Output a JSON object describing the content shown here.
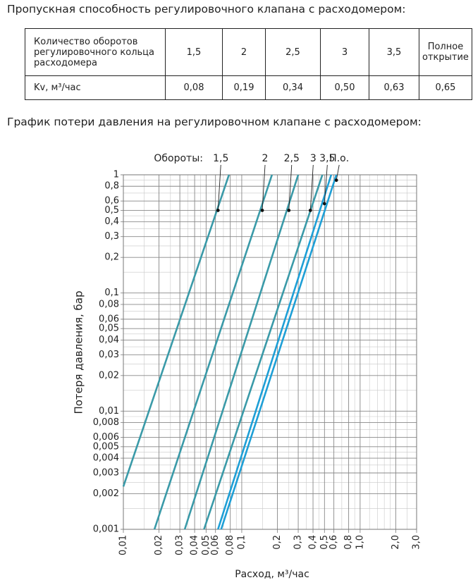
{
  "heading": "Пропускная способность регулировочного клапана с расходомером:",
  "table": {
    "header": [
      "Количество оборотов регулировочного кольца расходомера",
      "1,5",
      "2",
      "2,5",
      "3",
      "3,5",
      "Полное открытие"
    ],
    "rows": [
      [
        "Kv, м³/час",
        "0,08",
        "0,19",
        "0,34",
        "0,50",
        "0,63",
        "0,65"
      ]
    ]
  },
  "chart_heading": "График потери давления на регулировочном клапане с расходомером:",
  "chart_data": {
    "type": "line",
    "log_x": true,
    "log_y": true,
    "legend_title": "Обороты:",
    "x_label": "Расход, м³/час",
    "y_label": "Потеря давления, бар",
    "xlim": [
      0.01,
      3
    ],
    "ylim": [
      0.001,
      1
    ],
    "xticks": [
      {
        "value": 0.01,
        "label": "0,01"
      },
      {
        "value": 0.02,
        "label": "0,02"
      },
      {
        "value": 0.03,
        "label": "0,03"
      },
      {
        "value": 0.04,
        "label": "0,04"
      },
      {
        "value": 0.05,
        "label": "0,05"
      },
      {
        "value": 0.06,
        "label": "0,06"
      },
      {
        "value": 0.08,
        "label": "0,08"
      },
      {
        "value": 0.1,
        "label": "0,1"
      },
      {
        "value": 0.2,
        "label": "0,2"
      },
      {
        "value": 0.3,
        "label": "0,3"
      },
      {
        "value": 0.4,
        "label": "0,4"
      },
      {
        "value": 0.5,
        "label": "0,5"
      },
      {
        "value": 0.6,
        "label": "0,6"
      },
      {
        "value": 0.8,
        "label": "0,8"
      },
      {
        "value": 1,
        "label": "1,0"
      },
      {
        "value": 2,
        "label": "2,0"
      },
      {
        "value": 3,
        "label": "3,0"
      }
    ],
    "yticks": [
      1,
      {
        "value": 0.8,
        "label": "0,8"
      },
      {
        "value": 0.6,
        "label": "0,6"
      },
      {
        "value": 0.5,
        "label": "0,5"
      },
      {
        "value": 0.4,
        "label": "0,4"
      },
      {
        "value": 0.3,
        "label": "0,3"
      },
      {
        "value": 0.2,
        "label": "0,2"
      },
      {
        "value": 0.1,
        "label": "0,1"
      },
      {
        "value": 0.08,
        "label": "0,08"
      },
      {
        "value": 0.06,
        "label": "0,06"
      },
      {
        "value": 0.05,
        "label": "0,05"
      },
      {
        "value": 0.04,
        "label": "0,04"
      },
      {
        "value": 0.03,
        "label": "0,03"
      },
      {
        "value": 0.02,
        "label": "0,02"
      },
      {
        "value": 0.01,
        "label": "0,01"
      },
      {
        "value": 0.008,
        "label": "0,008"
      },
      {
        "value": 0.006,
        "label": "0,006"
      },
      {
        "value": 0.005,
        "label": "0,005"
      },
      {
        "value": 0.004,
        "label": "0,004"
      },
      {
        "value": 0.003,
        "label": "0,003"
      },
      {
        "value": 0.002,
        "label": "0,002"
      },
      {
        "value": 0.001,
        "label": "0,001"
      }
    ],
    "minor_xgrid": [
      0.015,
      0.025,
      0.035,
      0.045,
      0.07,
      0.09,
      0.15,
      0.25,
      0.35,
      0.45,
      0.7,
      0.9,
      1.2,
      1.4,
      1.6,
      1.8,
      2.5
    ],
    "minor_ygrid": [
      0.0015,
      0.0025,
      0.0035,
      0.0045,
      0.007,
      0.009,
      0.015,
      0.025,
      0.035,
      0.045,
      0.07,
      0.09,
      0.15,
      0.25,
      0.35,
      0.45,
      0.7,
      0.9
    ],
    "grid": true,
    "series": [
      {
        "name": "1,5",
        "color": "#3a9aa8",
        "x": [
          0.01,
          0.078
        ],
        "values": [
          0.0023,
          1
        ],
        "marker": {
          "x": 0.063,
          "y": 0.5
        }
      },
      {
        "name": "2",
        "color": "#3a9aa8",
        "x": [
          0.0183,
          0.18
        ],
        "values": [
          0.001,
          1
        ],
        "marker": {
          "x": 0.149,
          "y": 0.5
        }
      },
      {
        "name": "2,5",
        "color": "#3a9aa8",
        "x": [
          0.033,
          0.3
        ],
        "values": [
          0.001,
          1
        ],
        "marker": {
          "x": 0.25,
          "y": 0.5
        }
      },
      {
        "name": "3",
        "color": "#3a9aa8",
        "x": [
          0.048,
          0.48
        ],
        "values": [
          0.001,
          1
        ],
        "marker": {
          "x": 0.38,
          "y": 0.5
        }
      },
      {
        "name": "3,5",
        "color": "#1e9fd6",
        "x": [
          0.063,
          0.57
        ],
        "values": [
          0.001,
          1
        ],
        "marker": {
          "x": 0.5,
          "y": 0.57
        }
      },
      {
        "name": "П.о.",
        "color": "#1e9fd6",
        "x": [
          0.067,
          0.63
        ],
        "values": [
          0.001,
          1
        ],
        "marker": {
          "x": 0.63,
          "y": 0.9
        }
      }
    ]
  }
}
